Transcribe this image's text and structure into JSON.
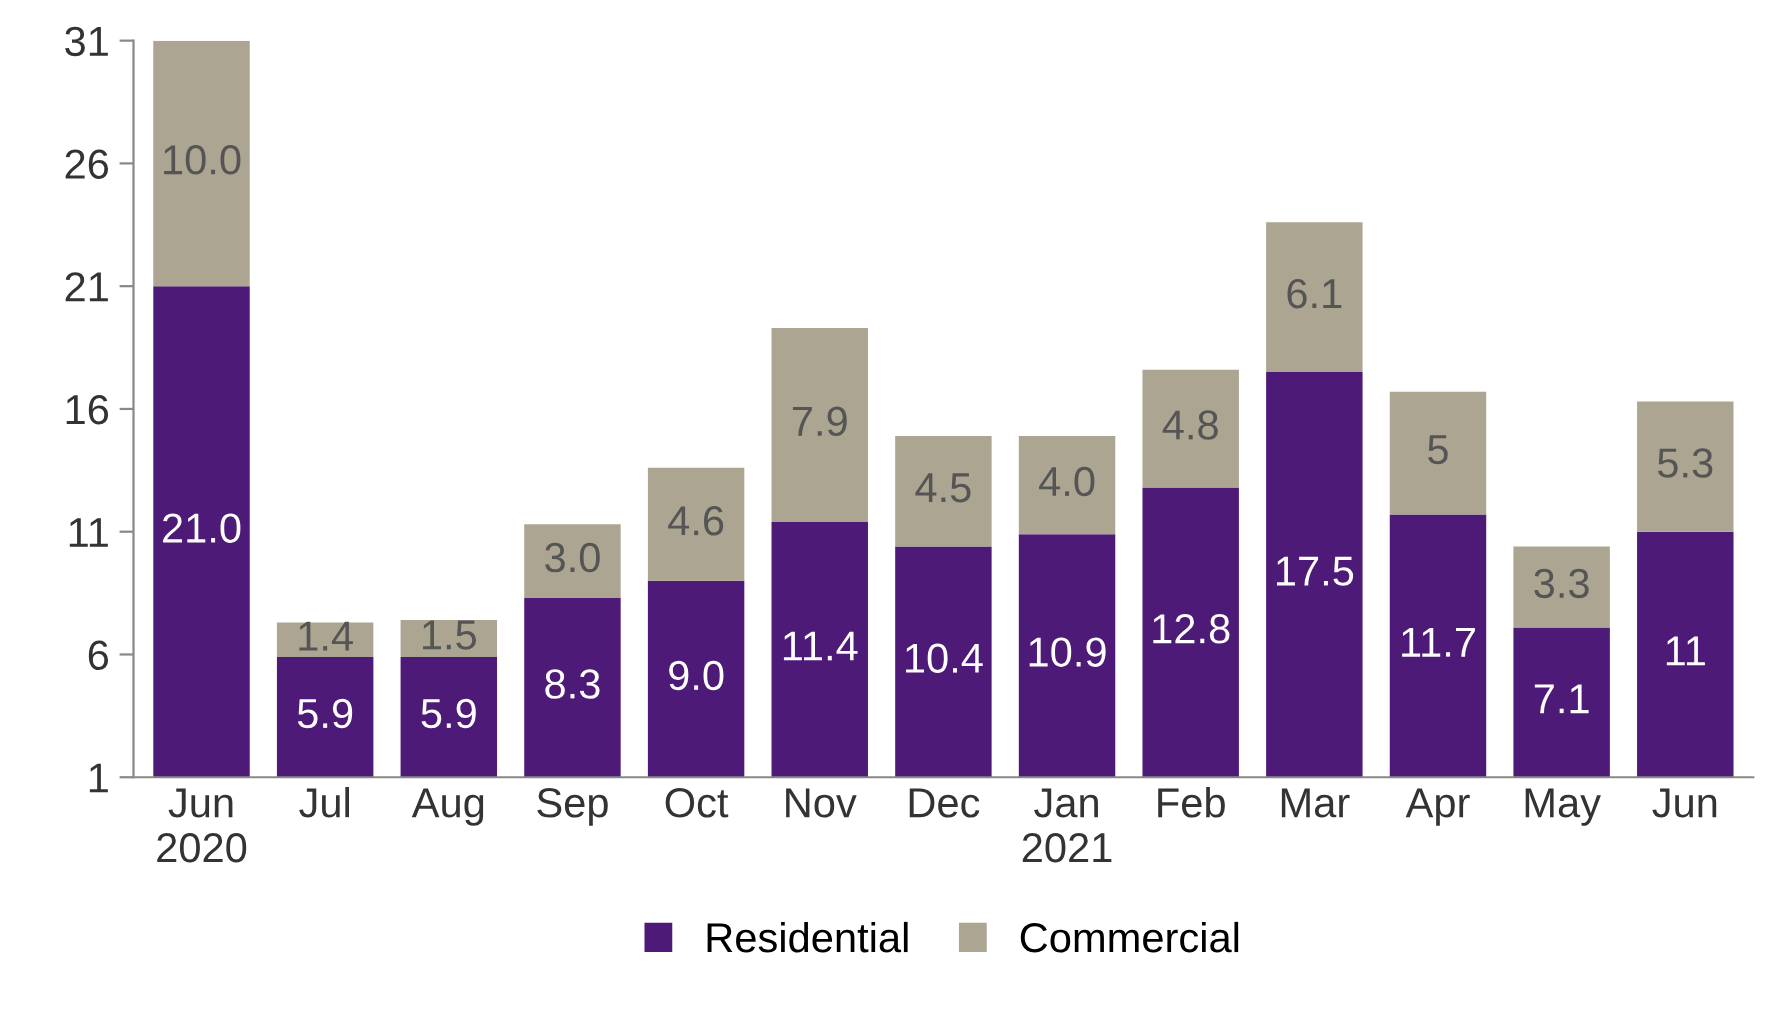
{
  "chart_data": {
    "type": "bar",
    "stacked": true,
    "categories": [
      "Jun\n2020",
      "Jul",
      "Aug",
      "Sep",
      "Oct",
      "Nov",
      "Dec",
      "Jan\n2021",
      "Feb",
      "Mar",
      "Apr",
      "May",
      "Jun"
    ],
    "series": [
      {
        "name": "Residential",
        "color": "#4e1a78",
        "values": [
          21.0,
          5.9,
          5.9,
          8.3,
          9.0,
          11.4,
          10.4,
          10.9,
          12.8,
          17.5,
          11.7,
          7.1,
          11
        ],
        "value_labels": [
          "21.0",
          "5.9",
          "5.9",
          "8.3",
          "9.0",
          "11.4",
          "10.4",
          "10.9",
          "12.8",
          "17.5",
          "11.7",
          "7.1",
          "11"
        ]
      },
      {
        "name": "Commercial",
        "color": "#aca591",
        "values": [
          10.0,
          1.4,
          1.5,
          3.0,
          4.6,
          7.9,
          4.5,
          4.0,
          4.8,
          6.1,
          5,
          3.3,
          5.3
        ],
        "value_labels": [
          "10.0",
          "1.4",
          "1.5",
          "3.0",
          "4.6",
          "7.9",
          "4.5",
          "4.0",
          "4.8",
          "6.1",
          "5",
          "3.3",
          "5.3"
        ]
      }
    ],
    "ylim": [
      1,
      31
    ],
    "yticks": [
      1,
      6,
      11,
      16,
      21,
      26,
      31
    ],
    "grid": false,
    "legend": "bottom"
  }
}
